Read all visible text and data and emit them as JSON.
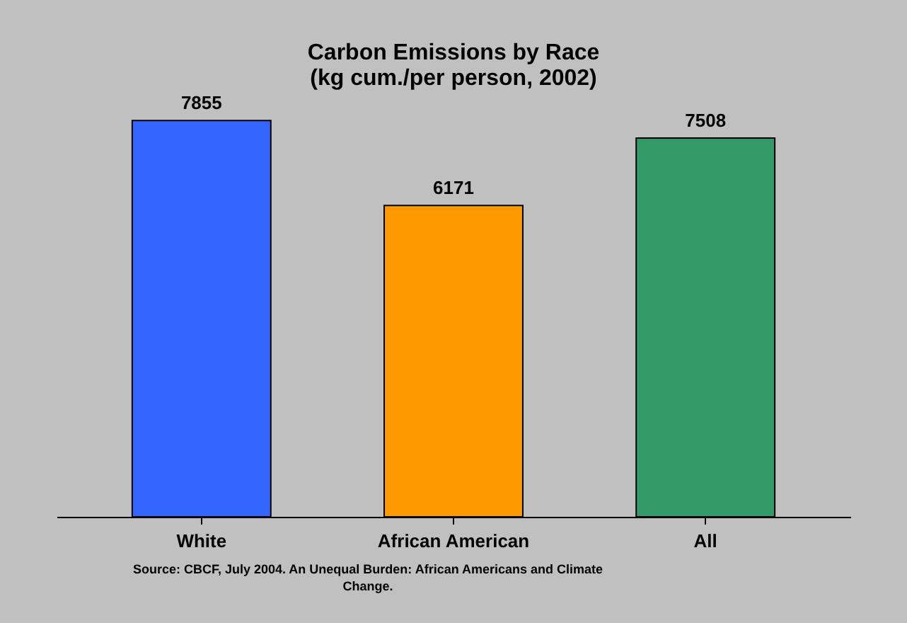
{
  "chart_data": {
    "type": "bar",
    "title": "Carbon Emissions by Race\n(kg cum./per person, 2002)",
    "categories": [
      "White",
      "African American",
      "All"
    ],
    "values": [
      7855,
      6171,
      7508
    ],
    "colors": [
      "#3366ff",
      "#ff9900",
      "#339966"
    ],
    "data_labels": true,
    "annotations": [
      "Source:  CBCF, July 2004. An Unequal Burden:  African Americans and Climate\nChange."
    ]
  }
}
